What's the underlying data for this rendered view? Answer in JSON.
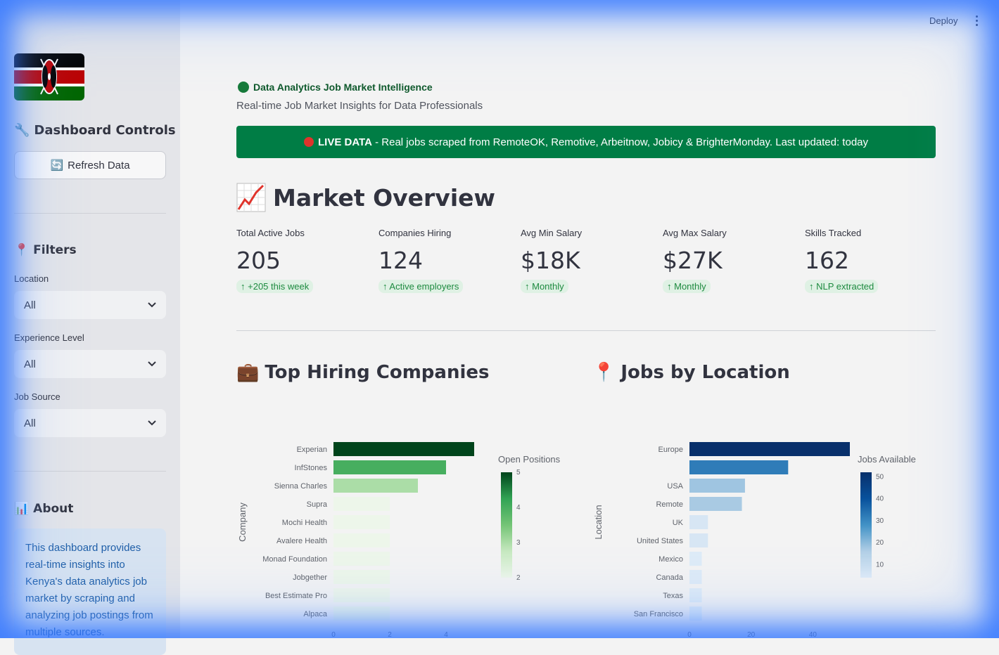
{
  "header": {
    "deploy_label": "Deploy"
  },
  "sidebar": {
    "controls_title": "Dashboard Controls",
    "refresh_label": "Refresh Data",
    "filters_title": "Filters",
    "filters": [
      {
        "label": "Location",
        "value": "All"
      },
      {
        "label": "Experience Level",
        "value": "All"
      },
      {
        "label": "Job Source",
        "value": "All"
      }
    ],
    "about_title": "About",
    "about_text": "This dashboard provides real-time insights into Kenya's data analytics job market by scraping and analyzing job postings from multiple sources."
  },
  "main": {
    "app_title": "Data Analytics Job Market Intelligence",
    "subtitle": "Real-time Job Market Insights for Data Professionals",
    "banner_strong": "LIVE DATA",
    "banner_text": " - Real jobs scraped from RemoteOK, Remotive, Arbeitnow, Jobicy & BrighterMonday. Last updated: today",
    "overview_title": "Market Overview",
    "metrics": [
      {
        "label": "Total Active Jobs",
        "value": "205",
        "delta": "+205 this week"
      },
      {
        "label": "Companies Hiring",
        "value": "124",
        "delta": "Active employers"
      },
      {
        "label": "Avg Min Salary",
        "value": "$18K",
        "delta": "Monthly"
      },
      {
        "label": "Avg Max Salary",
        "value": "$27K",
        "delta": "Monthly"
      },
      {
        "label": "Skills Tracked",
        "value": "162",
        "delta": "NLP extracted"
      }
    ],
    "companies_title": "Top Hiring Companies",
    "location_title": "Jobs by Location"
  },
  "chart_data": [
    {
      "type": "bar",
      "orientation": "horizontal",
      "categories": [
        "Experian",
        "InfStones",
        "Sienna Charles",
        "Supra",
        "Mochi Health",
        "Avalere Health",
        "Monad Foundation",
        "Jobgether",
        "Best Estimate Pro",
        "Alpaca"
      ],
      "values": [
        5,
        4,
        3,
        2,
        2,
        2,
        2,
        2,
        2,
        2
      ],
      "ylabel": "Company",
      "xticks": [
        "0",
        "2",
        "4"
      ],
      "xlim": [
        0,
        5
      ],
      "colorbar": {
        "title": "Open Positions",
        "ticks": [
          "5",
          "4",
          "3",
          "2"
        ],
        "range": [
          2,
          5
        ],
        "colorscale": "Greens"
      }
    },
    {
      "type": "bar",
      "orientation": "horizontal",
      "categories": [
        "Europe",
        "",
        "USA",
        "Remote",
        "UK",
        "United States",
        "Mexico",
        "Canada",
        "Texas",
        "San Francisco"
      ],
      "values": [
        52,
        32,
        18,
        17,
        6,
        6,
        4,
        4,
        4,
        4
      ],
      "ylabel": "Location",
      "xticks": [
        "0",
        "20",
        "40"
      ],
      "xlim": [
        0,
        52
      ],
      "colorbar": {
        "title": "Jobs Available",
        "ticks": [
          "50",
          "40",
          "30",
          "20",
          "10"
        ],
        "range": [
          4,
          52
        ],
        "colorscale": "Blues"
      }
    }
  ]
}
